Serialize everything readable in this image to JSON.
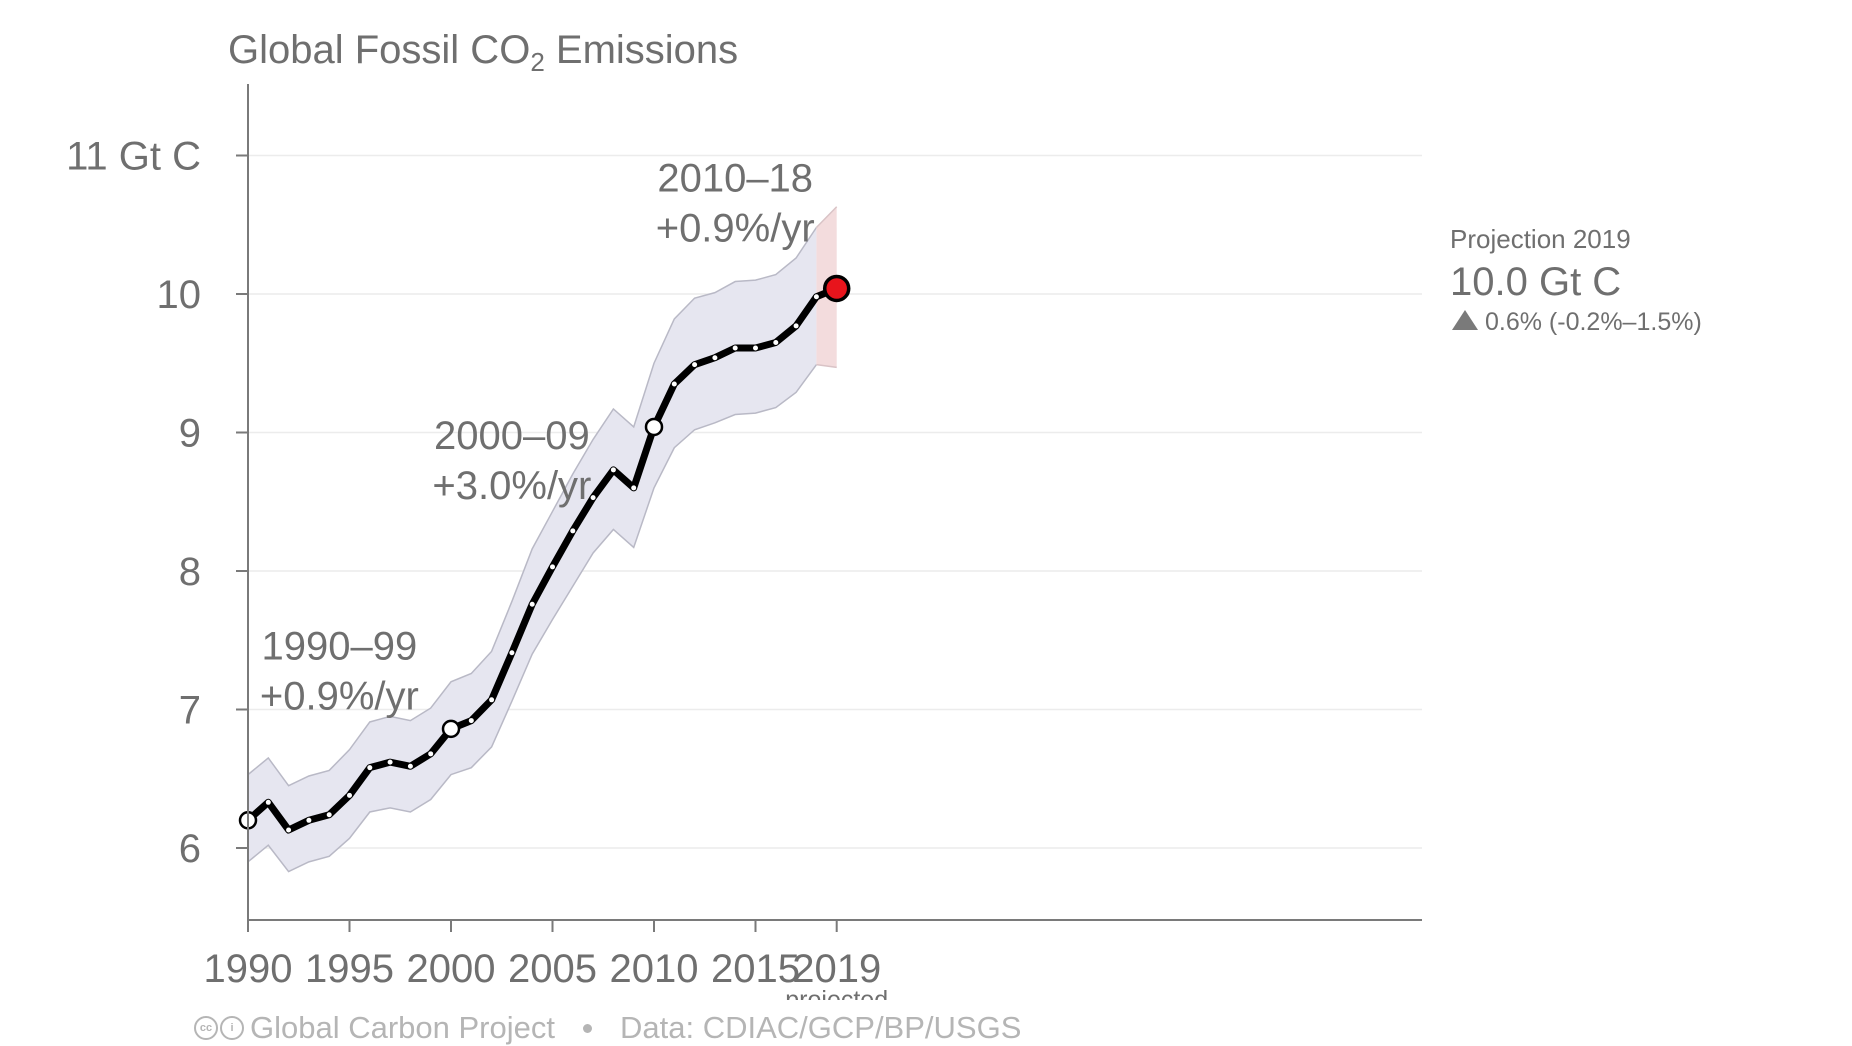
{
  "title_text": "Global Fossil CO",
  "title_sub": "2",
  "title_rest": " Emissions",
  "footer": {
    "source": "Global Carbon Project",
    "data": "Data: CDIAC/GCP/BP/USGS",
    "license_icon": "creative-commons-icon"
  },
  "colors": {
    "band": "#e6e6f0",
    "band_edge": "#b9b9c6",
    "projection_band": "#f3dcdd",
    "line": "#000000",
    "projection_dot": "#e8141c",
    "text": "#6f6f6f",
    "gridline": "#ececec"
  },
  "annotations": [
    {
      "period": "1990–99",
      "rate": "+0.9%/yr",
      "x": 1994.5,
      "y": 7.36
    },
    {
      "period": "2000–09",
      "rate": "+3.0%/yr",
      "x": 2003.0,
      "y": 8.88
    },
    {
      "period": "2010–18",
      "rate": "+0.9%/yr",
      "x": 2014.0,
      "y": 10.74
    }
  ],
  "projection": {
    "label": "Projection 2019",
    "value": "10.0 Gt C",
    "change": "0.6% (-0.2%–1.5%)",
    "change_icon": "triangle-up-icon"
  },
  "chart_data": {
    "type": "line",
    "title": "Global Fossil CO2 Emissions",
    "xlabel": "",
    "ylabel": "",
    "xlim": [
      1989.5,
      2019
    ],
    "ylim": [
      5.5,
      11.5
    ],
    "yticks": [
      6,
      7,
      8,
      9,
      10,
      11
    ],
    "ytick_labels": [
      "6",
      "7",
      "8",
      "9",
      "10",
      "11 Gt C"
    ],
    "xticks": [
      1990,
      1995,
      2000,
      2005,
      2010,
      2015,
      2019
    ],
    "xtick_labels": [
      "1990",
      "1995",
      "2000",
      "2005",
      "2010",
      "2015",
      "2019"
    ],
    "xtick_sublabel": {
      "x": 2019,
      "text": "projected"
    },
    "grid": "horizontal",
    "x": [
      1989,
      1990,
      1991,
      1992,
      1993,
      1994,
      1995,
      1996,
      1997,
      1998,
      1999,
      2000,
      2001,
      2002,
      2003,
      2004,
      2005,
      2006,
      2007,
      2008,
      2009,
      2010,
      2011,
      2012,
      2013,
      2014,
      2015,
      2016,
      2017,
      2018,
      2019
    ],
    "series": [
      {
        "values": [
          6.1,
          6.2,
          6.33,
          6.13,
          6.2,
          6.24,
          6.38,
          6.58,
          6.62,
          6.59,
          6.68,
          6.86,
          6.92,
          7.07,
          7.41,
          7.76,
          8.03,
          8.29,
          8.53,
          8.73,
          8.6,
          9.04,
          9.35,
          9.49,
          9.54,
          9.61,
          9.61,
          9.65,
          9.77,
          9.98,
          10.04
        ],
        "lower": [
          5.78,
          5.9,
          6.02,
          5.83,
          5.9,
          5.94,
          6.07,
          6.26,
          6.29,
          6.26,
          6.35,
          6.53,
          6.58,
          6.73,
          7.06,
          7.4,
          7.65,
          7.89,
          8.13,
          8.3,
          8.17,
          8.6,
          8.89,
          9.02,
          9.07,
          9.13,
          9.14,
          9.18,
          9.29,
          9.49,
          9.47
        ],
        "upper": [
          6.43,
          6.53,
          6.65,
          6.45,
          6.52,
          6.56,
          6.71,
          6.91,
          6.95,
          6.92,
          7.01,
          7.2,
          7.26,
          7.42,
          7.78,
          8.16,
          8.43,
          8.7,
          8.95,
          9.17,
          9.04,
          9.5,
          9.82,
          9.97,
          10.01,
          10.09,
          10.1,
          10.14,
          10.26,
          10.48,
          10.63
        ]
      }
    ],
    "highlighted_points": [
      1990,
      2000,
      2010
    ],
    "projected_point": 2019,
    "projected_band_from": 2018
  }
}
